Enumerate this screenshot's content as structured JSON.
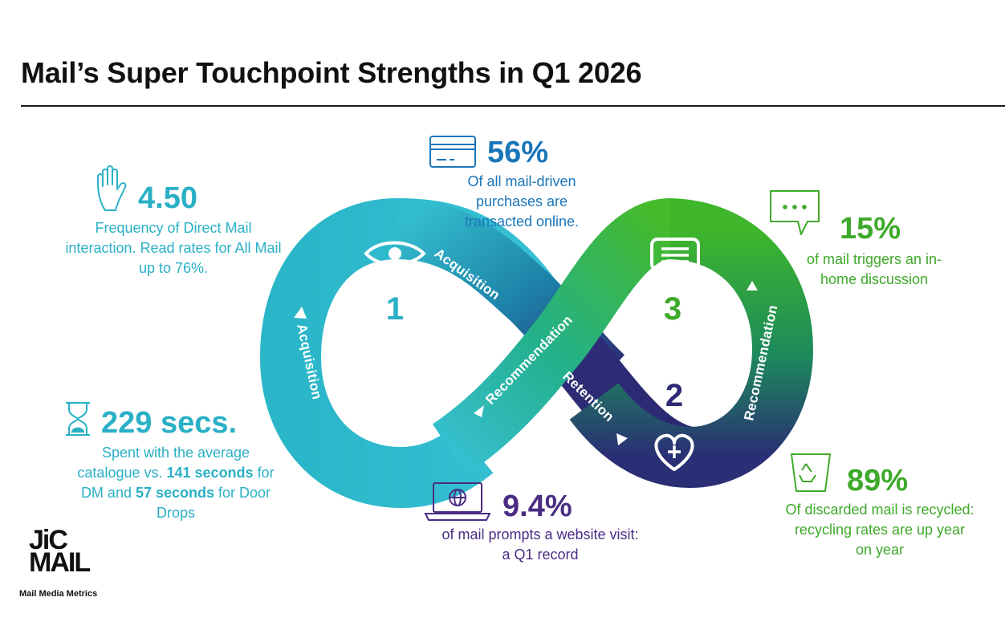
{
  "title": "Mail’s Super Touchpoint Strengths in Q1 2026",
  "colors": {
    "teal": "#2ab0c6",
    "blue": "#1a76b9",
    "navy": "#2e2a73",
    "purple": "#4a2d84",
    "green": "#3ea92a"
  },
  "stats": {
    "frequency": {
      "icon": "hand-icon",
      "value": "4.50",
      "description": "Frequency of Direct Mail interaction. Read rates for All Mail up to 76%."
    },
    "online": {
      "icon": "credit-card-icon",
      "value": "56%",
      "description": "Of all mail-driven purchases are transacted online."
    },
    "discussion": {
      "icon": "speech-bubble-icon",
      "value": "15%",
      "description": "of mail triggers an in-home discussion"
    },
    "time": {
      "icon": "hourglass-icon",
      "value": "229 secs.",
      "desc_a": "Spent with the average catalogue vs. ",
      "desc_b": "141 seconds",
      "desc_c": " for DM and ",
      "desc_d": "57 seconds",
      "desc_e": " for Door Drops"
    },
    "website": {
      "icon": "laptop-globe-icon",
      "value": "9.4%",
      "description": "of mail prompts a website visit: a Q1 record"
    },
    "recycled": {
      "icon": "recycle-icon",
      "value": "89%",
      "description": "Of discarded mail is recycled: recycling rates are up year on year"
    }
  },
  "loop": {
    "labels": {
      "acquisition_left": "Acquisition",
      "acquisition_top": "Acquisition",
      "recommendation_center": "Recommendation",
      "retention": "Retention",
      "recommendation_right": "Recommendation"
    },
    "numbers": {
      "one": "1",
      "two": "2",
      "three": "3"
    },
    "icons": [
      "eye-icon",
      "message-icon",
      "heart-plus-icon"
    ]
  },
  "logo": {
    "line1": "JiC",
    "line2": "MAIL",
    "tagline": "Mail Media Metrics"
  }
}
